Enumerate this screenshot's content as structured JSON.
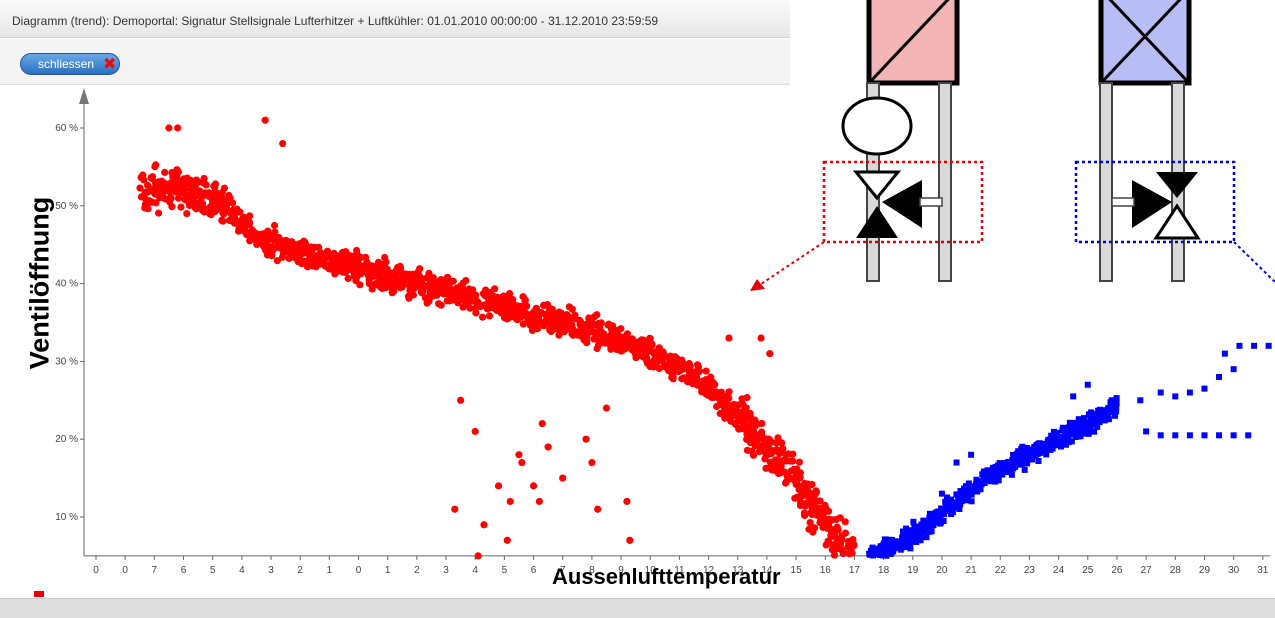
{
  "window": {
    "title": "Diagramm (trend): Demoportal: Signatur Stellsignale Lufterhitzer + Luftkühler: 01.01.2010 00:00:00 - 31.12.2010 23:59:59"
  },
  "toolbar": {
    "close_label": "schliessen"
  },
  "icons": {
    "close": "close-x-icon"
  },
  "colors": {
    "heater": "#ff0000",
    "cooler": "#0000ff",
    "close_button": "#3a7fd0",
    "close_x": "#e01010"
  },
  "chart_data": {
    "type": "scatter",
    "title": "",
    "xlabel": "Aussenlufttemperatur",
    "ylabel": "Ventilöffnung",
    "xlim": [
      -10,
      31
    ],
    "ylim": [
      5,
      62
    ],
    "xtick_labels": [
      "0",
      "0",
      "7",
      "6",
      "5",
      "4",
      "3",
      "2",
      "1",
      "0",
      "1",
      "2",
      "3",
      "4",
      "5",
      "6",
      "7",
      "8",
      "9",
      "10",
      "11",
      "12",
      "13",
      "14",
      "15",
      "16",
      "17",
      "18",
      "19",
      "20",
      "21",
      "22",
      "23",
      "24",
      "25",
      "26",
      "27",
      "28",
      "29",
      "30",
      "31"
    ],
    "yticks": [
      10,
      20,
      30,
      40,
      50,
      60
    ],
    "ytick_labels": [
      "10 %",
      "20 %",
      "30 %",
      "40 %",
      "50 %",
      "60 %"
    ],
    "grid": false,
    "series": [
      {
        "color": "#ff0000",
        "marker": "circle",
        "trend": [
          [
            -8.5,
            52
          ],
          [
            -7,
            52
          ],
          [
            -5.5,
            50
          ],
          [
            -4.5,
            46
          ],
          [
            -3,
            44
          ],
          [
            -1,
            42
          ],
          [
            1,
            40
          ],
          [
            3,
            38
          ],
          [
            5,
            36
          ],
          [
            7,
            34
          ],
          [
            9,
            31
          ],
          [
            10,
            29
          ],
          [
            11,
            26.5
          ],
          [
            12,
            23
          ],
          [
            13,
            19
          ],
          [
            13.8,
            16
          ],
          [
            14.5,
            12
          ],
          [
            15.3,
            7
          ],
          [
            16,
            5
          ]
        ],
        "outliers": [
          [
            -7.5,
            60
          ],
          [
            -7.2,
            60
          ],
          [
            -4.2,
            61
          ],
          [
            -3.6,
            58
          ],
          [
            11.7,
            33
          ],
          [
            12.8,
            33
          ],
          [
            13.1,
            31
          ],
          [
            2.5,
            25
          ],
          [
            3,
            21
          ],
          [
            2.3,
            11
          ],
          [
            3.3,
            9
          ],
          [
            3.8,
            14
          ],
          [
            4.2,
            12
          ],
          [
            4.5,
            18
          ],
          [
            5.3,
            22
          ],
          [
            5.5,
            19
          ],
          [
            6,
            15
          ],
          [
            5,
            14
          ],
          [
            5.2,
            12
          ],
          [
            4.6,
            17
          ],
          [
            7,
            17
          ],
          [
            7.2,
            11
          ],
          [
            8.2,
            12
          ],
          [
            8.3,
            7
          ],
          [
            3.1,
            5
          ],
          [
            6.8,
            20
          ],
          [
            7.5,
            24
          ],
          [
            4.1,
            7
          ]
        ]
      },
      {
        "color": "#0000ff",
        "marker": "square",
        "trend": [
          [
            16.5,
            5
          ],
          [
            17.5,
            6.5
          ],
          [
            18.5,
            9
          ],
          [
            19.5,
            12
          ],
          [
            20.5,
            15
          ],
          [
            21.5,
            17
          ],
          [
            22.5,
            19
          ],
          [
            23.5,
            21
          ],
          [
            24.5,
            23
          ],
          [
            25,
            24.5
          ]
        ],
        "outliers": [
          [
            25.8,
            25
          ],
          [
            26.5,
            26
          ],
          [
            27,
            25.5
          ],
          [
            27.5,
            26
          ],
          [
            28,
            26.5
          ],
          [
            28.5,
            28
          ],
          [
            29,
            29
          ],
          [
            28.7,
            31
          ],
          [
            29.2,
            32
          ],
          [
            29.7,
            32
          ],
          [
            30.2,
            32
          ],
          [
            26,
            21
          ],
          [
            26.5,
            20.5
          ],
          [
            27,
            20.5
          ],
          [
            27.5,
            20.5
          ],
          [
            28,
            20.5
          ],
          [
            28.5,
            20.5
          ],
          [
            29,
            20.5
          ],
          [
            29.5,
            20.5
          ],
          [
            24,
            27
          ],
          [
            23.5,
            25.5
          ],
          [
            19.5,
            17
          ],
          [
            19,
            13
          ],
          [
            20,
            18
          ]
        ]
      }
    ]
  }
}
